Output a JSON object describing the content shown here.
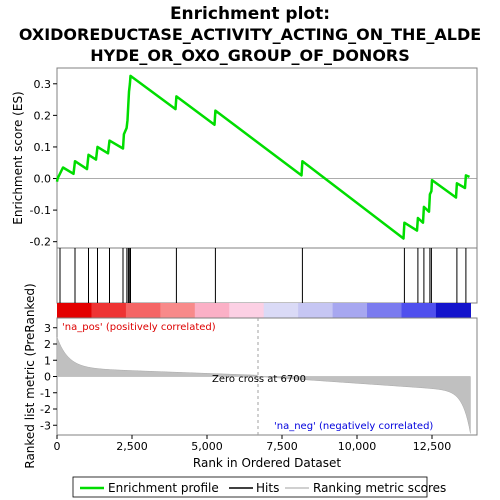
{
  "chart_data": {
    "type": "line",
    "title_line1": "Enrichment plot:",
    "title_line2": "OXIDOREDUCTASE_ACTIVITY_ACTING_ON_THE_ALDE",
    "title_line3": "HYDE_OR_OXO_GROUP_OF_DONORS",
    "es_panel": {
      "ylabel": "Enrichment score (ES)",
      "ylim": [
        -0.22,
        0.35
      ],
      "yticks": [
        {
          "v": 0.3,
          "label": "0.3"
        },
        {
          "v": 0.2,
          "label": "0.2"
        },
        {
          "v": 0.1,
          "label": "0.1"
        },
        {
          "v": 0.0,
          "label": "0.0"
        },
        {
          "v": -0.1,
          "label": "-0.1"
        },
        {
          "v": -0.2,
          "label": "-0.2"
        }
      ],
      "series_color": "#00dd00",
      "points": [
        [
          0,
          -0.01
        ],
        [
          20,
          0.0
        ],
        [
          200,
          0.035
        ],
        [
          550,
          0.015
        ],
        [
          600,
          0.055
        ],
        [
          1000,
          0.03
        ],
        [
          1050,
          0.075
        ],
        [
          1300,
          0.06
        ],
        [
          1350,
          0.1
        ],
        [
          1700,
          0.08
        ],
        [
          1750,
          0.12
        ],
        [
          2200,
          0.095
        ],
        [
          2230,
          0.14
        ],
        [
          2320,
          0.16
        ],
        [
          2350,
          0.185
        ],
        [
          2380,
          0.24
        ],
        [
          2400,
          0.275
        ],
        [
          2430,
          0.3
        ],
        [
          2450,
          0.325
        ],
        [
          3950,
          0.22
        ],
        [
          3980,
          0.26
        ],
        [
          5250,
          0.17
        ],
        [
          5280,
          0.215
        ],
        [
          8150,
          0.01
        ],
        [
          8180,
          0.055
        ],
        [
          11550,
          -0.19
        ],
        [
          11580,
          -0.14
        ],
        [
          12000,
          -0.165
        ],
        [
          12030,
          -0.125
        ],
        [
          12200,
          -0.14
        ],
        [
          12230,
          -0.09
        ],
        [
          12400,
          -0.105
        ],
        [
          12430,
          -0.05
        ],
        [
          12480,
          -0.04
        ],
        [
          12500,
          -0.005
        ],
        [
          13300,
          -0.06
        ],
        [
          13330,
          -0.015
        ],
        [
          13600,
          -0.03
        ],
        [
          13630,
          0.01
        ],
        [
          13750,
          0.005
        ]
      ]
    },
    "hits": [
      100,
      600,
      1050,
      1350,
      1750,
      2200,
      2330,
      2380,
      2410,
      2450,
      3980,
      5280,
      8180,
      11580,
      12030,
      12230,
      12430,
      12480,
      13330,
      13630
    ],
    "rank_panel": {
      "ylabel": "Ranked list metric (PreRanked)",
      "ylim": [
        -3.6,
        3.6
      ],
      "yticks": [
        {
          "v": 3,
          "label": "3"
        },
        {
          "v": 2,
          "label": "2"
        },
        {
          "v": 1,
          "label": "1"
        },
        {
          "v": 0,
          "label": "0"
        },
        {
          "v": -1,
          "label": "-1"
        },
        {
          "v": -2,
          "label": "-2"
        },
        {
          "v": -3,
          "label": "-3"
        }
      ],
      "pos_label": "'na_pos' (positively correlated)",
      "neg_label": "'na_neg' (negatively correlated)",
      "zero_cross_label": "Zero cross at 6700",
      "zero_cross": 6700
    },
    "x": {
      "label": "Rank in Ordered Dataset",
      "xlim": [
        0,
        14000
      ],
      "ticks": [
        {
          "v": 0,
          "label": "0"
        },
        {
          "v": 2500,
          "label": "2,500"
        },
        {
          "v": 5000,
          "label": "5,000"
        },
        {
          "v": 7500,
          "label": "7,500"
        },
        {
          "v": 10000,
          "label": "10,000"
        },
        {
          "v": 12500,
          "label": "12,500"
        }
      ],
      "n_genes": 13780
    },
    "legend": {
      "items": [
        {
          "label": "Enrichment profile",
          "color": "#00dd00"
        },
        {
          "label": "Hits",
          "color": "#000000"
        },
        {
          "label": "Ranking metric scores",
          "color": "#c0c0c0"
        }
      ]
    }
  }
}
